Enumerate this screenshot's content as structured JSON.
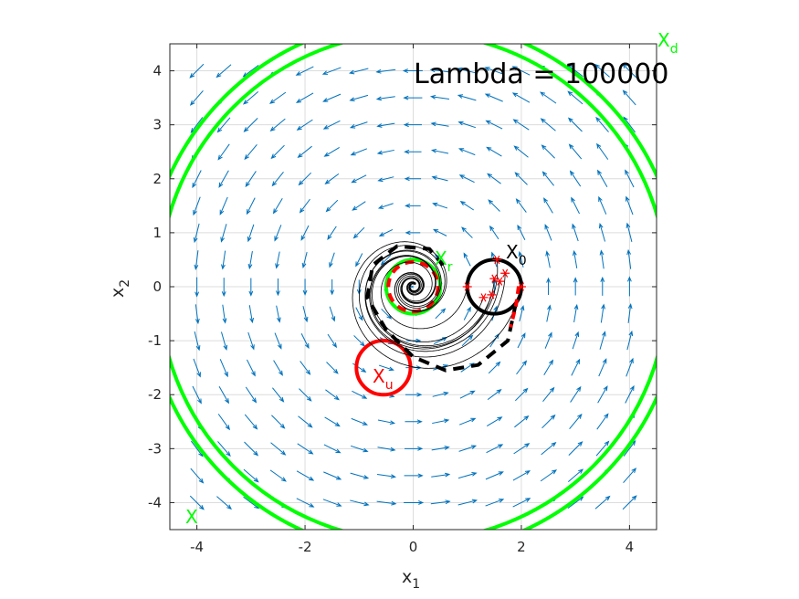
{
  "chart_data": {
    "type": "vector-field",
    "title": "Lambda = 100000",
    "xlabel": {
      "base": "x",
      "sub": "1"
    },
    "ylabel": {
      "base": "x",
      "sub": "2"
    },
    "xlim": [
      -4.5,
      4.5
    ],
    "ylim": [
      -4.5,
      4.5
    ],
    "xticks": [
      -4,
      -2,
      0,
      2,
      4
    ],
    "yticks": [
      -4,
      -3,
      -2,
      -1,
      0,
      1,
      2,
      3,
      4
    ],
    "grid": true,
    "colors": {
      "arrows": "#0072BD",
      "green": "#00FF00",
      "red": "#FF0000",
      "black": "#000000",
      "grid": "#DCDCDC"
    },
    "vector_field": {
      "model": "rotation",
      "x_grid": [
        -4,
        -3.5,
        -3,
        -2.5,
        -2,
        -1.5,
        -1,
        -0.5,
        0,
        0.5,
        1,
        1.5,
        2,
        2.5,
        3,
        3.5,
        4
      ],
      "y_grid": [
        -4,
        -3.5,
        -3,
        -2.5,
        -2,
        -1.5,
        -1,
        -0.5,
        0,
        0.5,
        1,
        1.5,
        2,
        2.5,
        3,
        3.5,
        4
      ]
    },
    "sets": {
      "X_d": {
        "label": "X",
        "sub": "d",
        "type": "outer-boundary",
        "radii": [
          4.7,
          4.95
        ],
        "color": "#00FF00"
      },
      "X_r": {
        "label": "X",
        "sub": "r",
        "center": [
          0,
          0
        ],
        "radius": 0.5,
        "color": "#00FF00"
      },
      "X_0": {
        "label": "X",
        "sub": "0",
        "center": [
          1.5,
          0
        ],
        "radius": 0.5,
        "color": "#000000"
      },
      "X_u": {
        "label": "X",
        "sub": "u",
        "center": [
          -0.55,
          -1.5
        ],
        "radius": 0.5,
        "color": "#FF0000"
      },
      "X": {
        "label": "X",
        "color": "#00FF00"
      }
    },
    "initial_points": [
      [
        1.0,
        0.0
      ],
      [
        1.3,
        -0.2
      ],
      [
        1.45,
        -0.15
      ],
      [
        1.5,
        0.15
      ],
      [
        1.6,
        0.1
      ],
      [
        1.55,
        0.5
      ],
      [
        1.7,
        0.25
      ],
      [
        2.0,
        0.0
      ]
    ],
    "trajectory_count": 8
  }
}
